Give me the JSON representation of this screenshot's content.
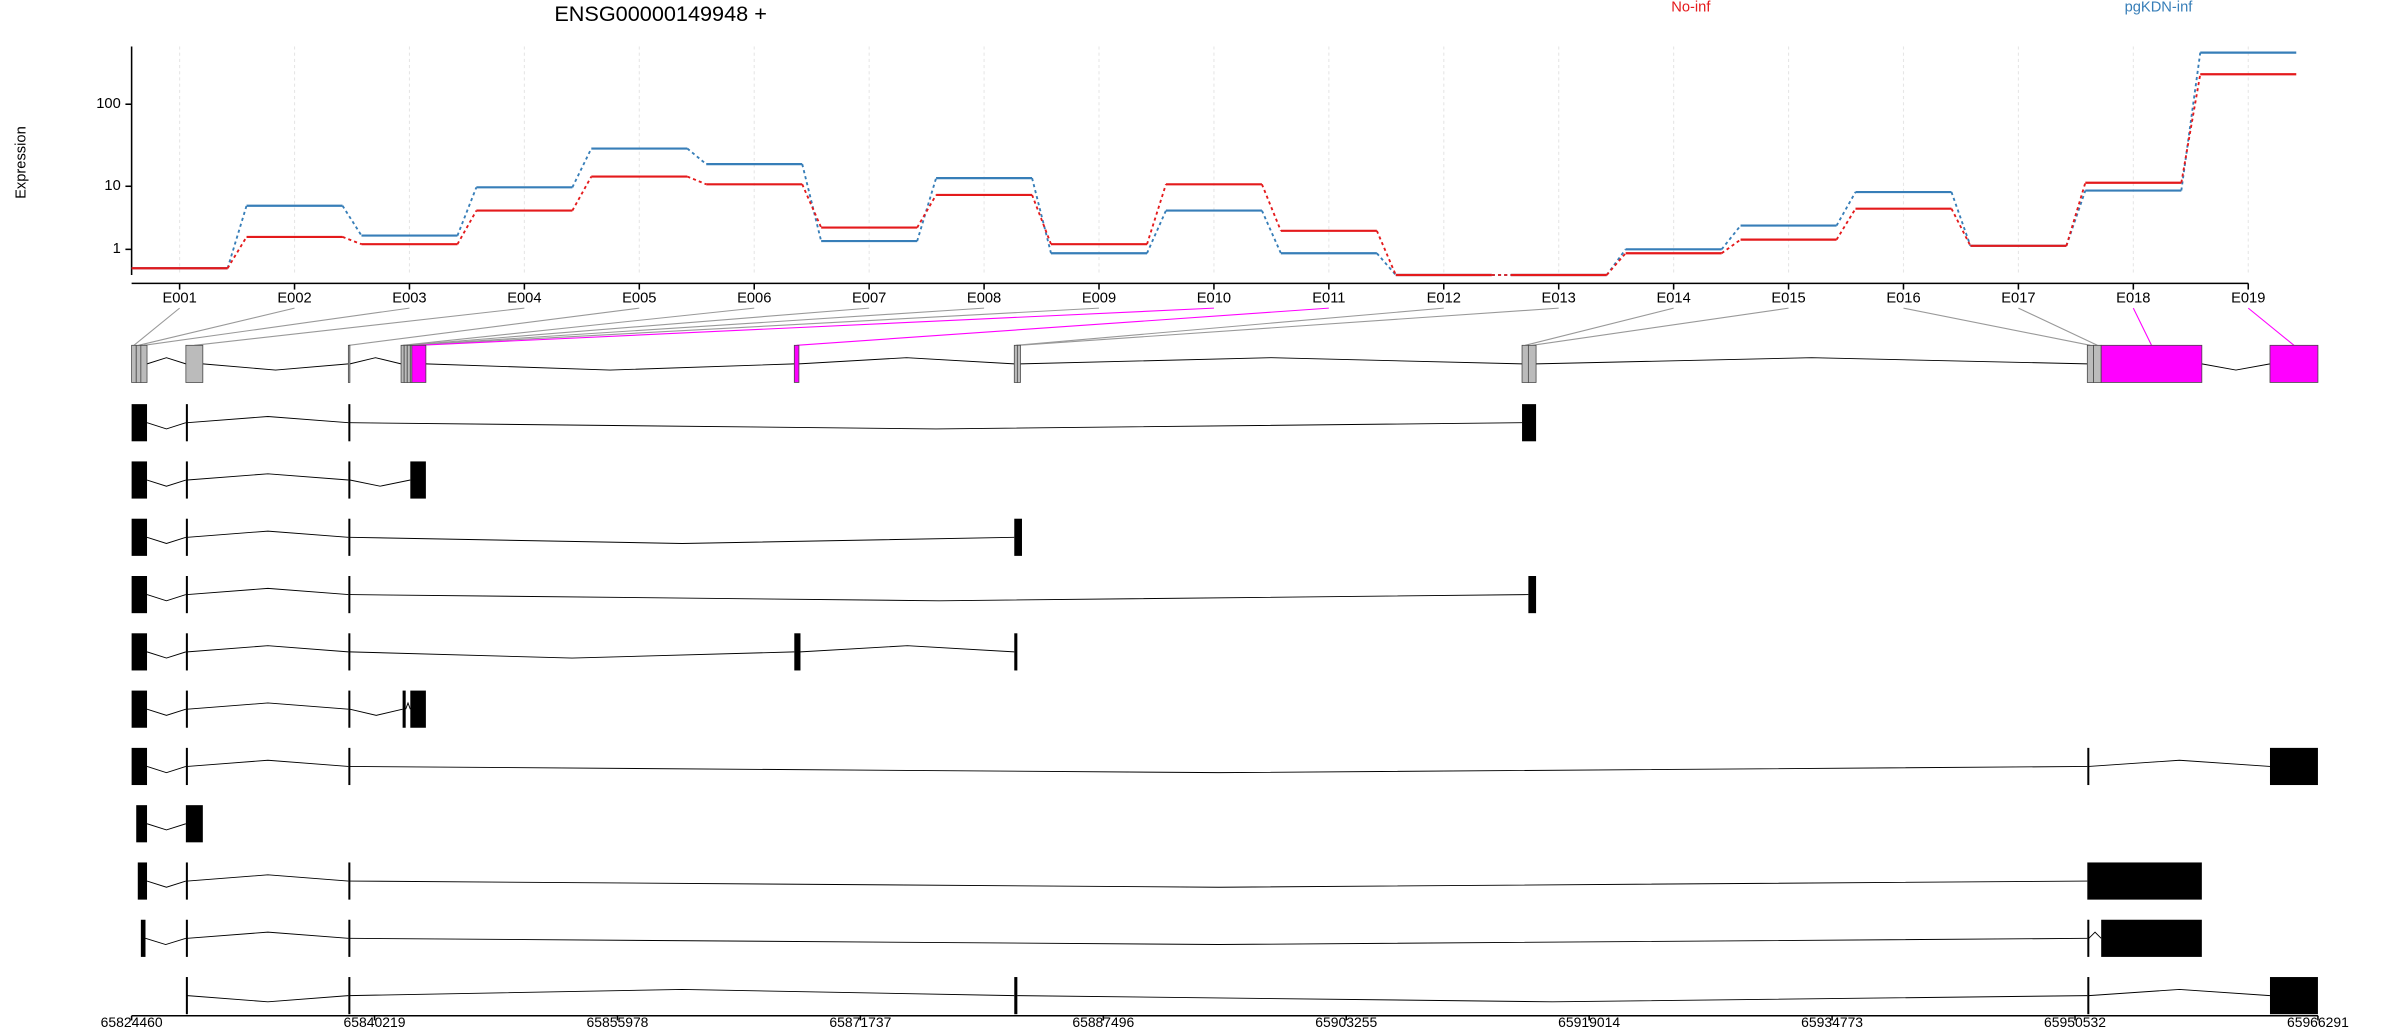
{
  "chart_data": [
    {
      "type": "line",
      "title": "ENSG00000149948 +",
      "y_label": "Expression",
      "yscale": "log1p",
      "grid": true,
      "categories": [
        "E001",
        "E002",
        "E003",
        "E004",
        "E005",
        "E006",
        "E007",
        "E008",
        "E009",
        "E010",
        "E011",
        "E012",
        "E013",
        "E014",
        "E015",
        "E016",
        "E017",
        "E018",
        "E019"
      ],
      "series": [
        {
          "name": "No-inf",
          "color": "#e41a1c",
          "values": [
            0.2,
            1.8,
            1.3,
            4.7,
            13.3,
            10.6,
            2.6,
            7.7,
            1.3,
            10.6,
            2.3,
            0,
            0,
            0.8,
            1.6,
            5.0,
            1.2,
            11.1,
            226
          ]
        },
        {
          "name": "pgKDN-inf",
          "color": "#377eb8",
          "values": [
            0.2,
            5.5,
            1.9,
            9.7,
            29.5,
            19,
            1.5,
            12.7,
            0.8,
            4.7,
            0.8,
            0,
            0,
            1.0,
            2.8,
            8.4,
            1.2,
            8.8,
            406
          ]
        }
      ],
      "ylim": [
        0,
        480
      ],
      "yticks": [
        1,
        10,
        100
      ]
    },
    {
      "type": "gene-model",
      "xlim": [
        65824460,
        65966291
      ],
      "xticks": [
        65824460,
        65840219,
        65855978,
        65871737,
        65887496,
        65903255,
        65919014,
        65934773,
        65950532,
        65966291
      ],
      "bins": [
        [
          65824460,
          65824760
        ],
        [
          65824760,
          65825060
        ],
        [
          65825060,
          65825460
        ],
        [
          65827980,
          65829080
        ],
        [
          65838520,
          65838620
        ],
        [
          65841940,
          65842140
        ],
        [
          65842140,
          65842340
        ],
        [
          65842340,
          65842540
        ],
        [
          65842540,
          65842640
        ],
        [
          65842640,
          65843550
        ],
        [
          65867450,
          65867750
        ],
        [
          65881720,
          65881920
        ],
        [
          65881920,
          65882120
        ],
        [
          65914660,
          65915070
        ],
        [
          65915070,
          65915570
        ],
        [
          65951330,
          65951730
        ],
        [
          65951730,
          65952230
        ],
        [
          65952230,
          65958760
        ],
        [
          65963180,
          65966291
        ]
      ],
      "bin_colors": [
        "#bbbbbb",
        "#bbbbbb",
        "#bbbbbb",
        "#bbbbbb",
        "#bbbbbb",
        "#bbbbbb",
        "#bbbbbb",
        "#bbbbbb",
        "#bbbbbb",
        "#ff00ff",
        "#ff00ff",
        "#bbbbbb",
        "#bbbbbb",
        "#bbbbbb",
        "#bbbbbb",
        "#bbbbbb",
        "#bbbbbb",
        "#ff00ff",
        "#ff00ff"
      ],
      "transcript_color": "#000000",
      "transcripts": [
        [
          [
            65824460,
            65825460
          ],
          [
            65827980,
            65828080
          ],
          [
            65838520,
            65838620
          ],
          [
            65914660,
            65915570
          ]
        ],
        [
          [
            65824460,
            65825460
          ],
          [
            65827980,
            65828080
          ],
          [
            65838520,
            65838620
          ],
          [
            65842540,
            65843550
          ]
        ],
        [
          [
            65824460,
            65825460
          ],
          [
            65827980,
            65828080
          ],
          [
            65838520,
            65838620
          ],
          [
            65881720,
            65882220
          ]
        ],
        [
          [
            65824460,
            65825460
          ],
          [
            65827980,
            65828080
          ],
          [
            65838520,
            65838620
          ],
          [
            65915070,
            65915570
          ]
        ],
        [
          [
            65824460,
            65825460
          ],
          [
            65827980,
            65828080
          ],
          [
            65838520,
            65838620
          ],
          [
            65867450,
            65867850
          ],
          [
            65881720,
            65881920
          ]
        ],
        [
          [
            65824460,
            65825460
          ],
          [
            65827980,
            65828080
          ],
          [
            65838520,
            65838620
          ],
          [
            65842040,
            65842240
          ],
          [
            65842540,
            65843550
          ]
        ],
        [
          [
            65824460,
            65825460
          ],
          [
            65827980,
            65828080
          ],
          [
            65838520,
            65838620
          ],
          [
            65951330,
            65951430
          ],
          [
            65963180,
            65966291
          ]
        ],
        [
          [
            65824760,
            65825460
          ],
          [
            65827980,
            65829080
          ]
        ],
        [
          [
            65824860,
            65825460
          ],
          [
            65827980,
            65828080
          ],
          [
            65838520,
            65838620
          ],
          [
            65951330,
            65958760
          ]
        ],
        [
          [
            65825060,
            65825360
          ],
          [
            65827980,
            65828080
          ],
          [
            65838520,
            65838620
          ],
          [
            65951330,
            65951430
          ],
          [
            65952230,
            65958760
          ]
        ],
        [
          [
            65827980,
            65828080
          ],
          [
            65838520,
            65838620
          ],
          [
            65881720,
            65881920
          ],
          [
            65951330,
            65951430
          ],
          [
            65963180,
            65966291
          ]
        ]
      ]
    }
  ]
}
